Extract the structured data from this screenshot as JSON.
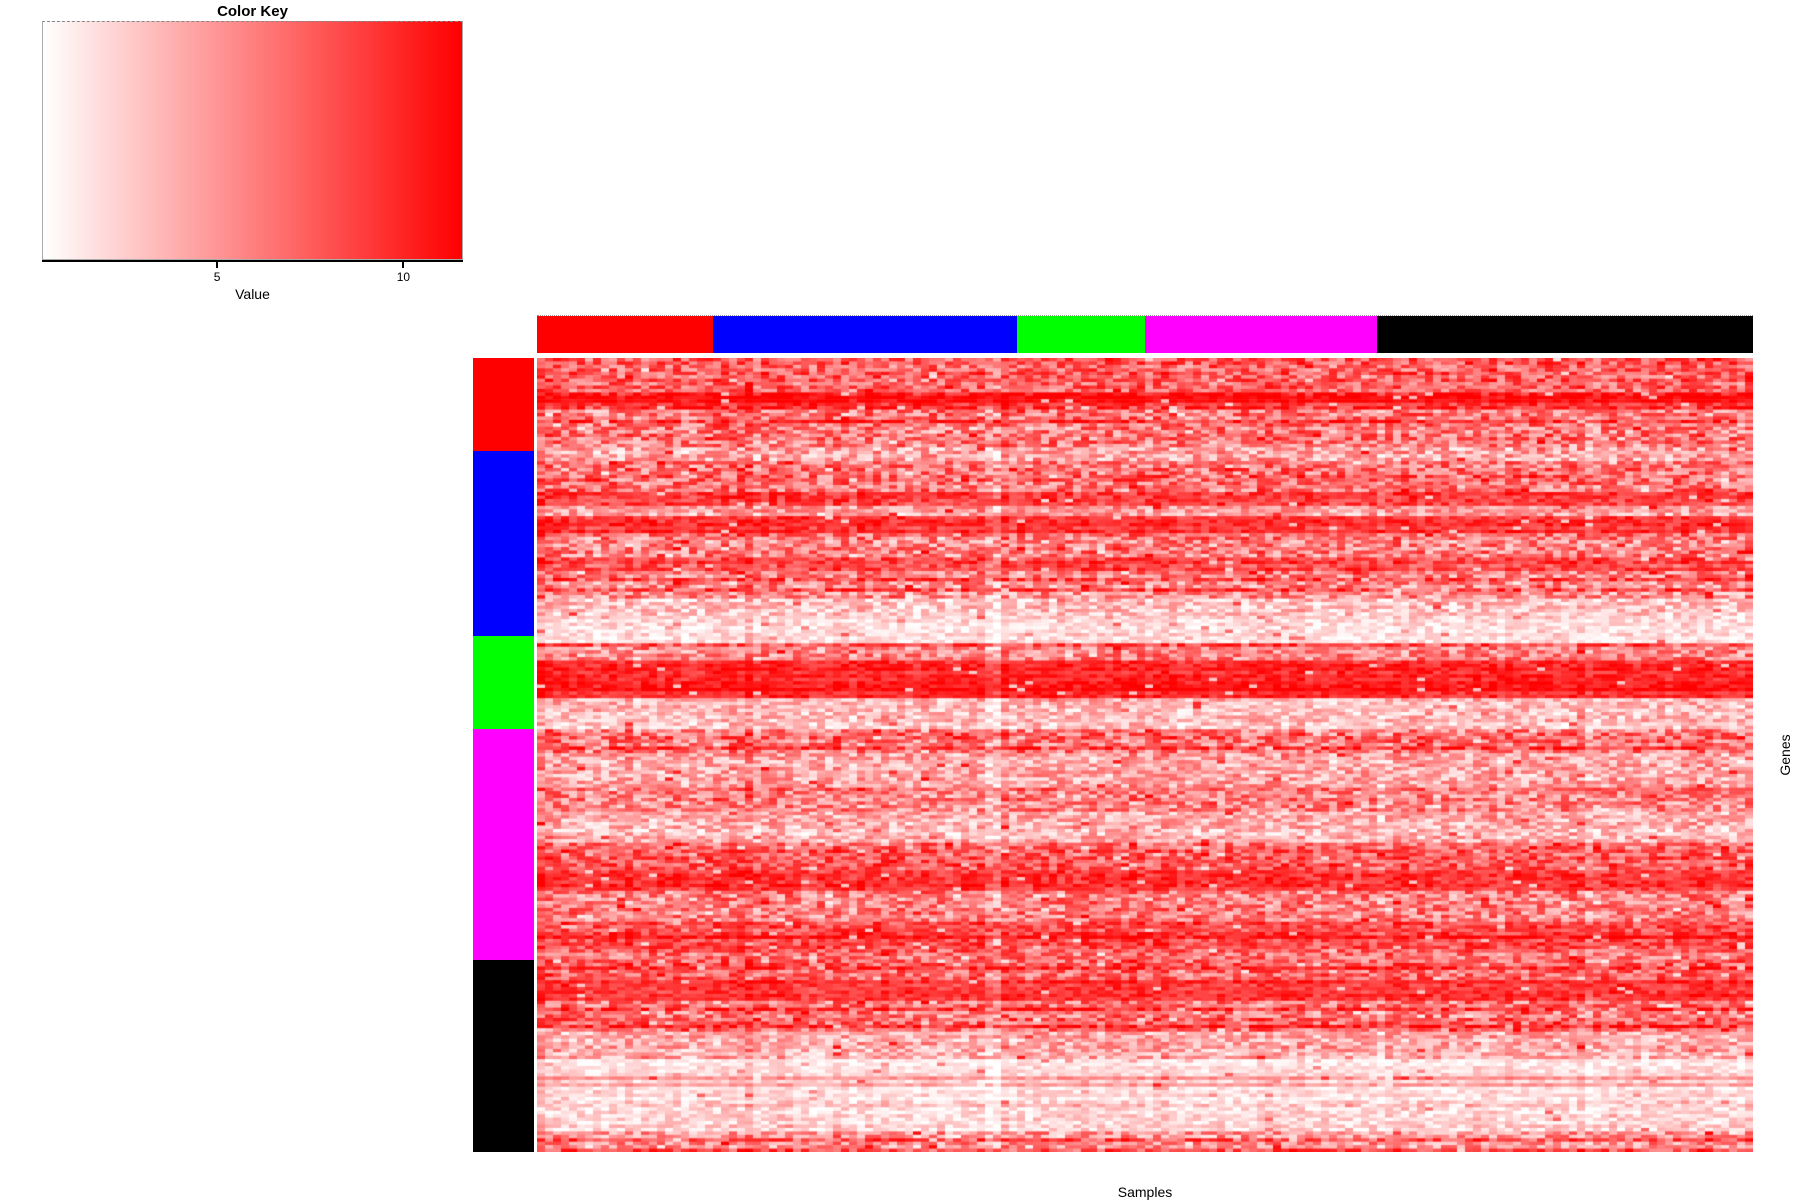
{
  "color_key": {
    "title": "Color Key",
    "axis_label": "Value",
    "ticks": [
      {
        "value": 5,
        "label": "5"
      },
      {
        "value": 10,
        "label": "10"
      }
    ],
    "axis_range": [
      0.3,
      11.6
    ],
    "gradient_low": "#FFFFFF",
    "gradient_high": "#FF0000"
  },
  "axes": {
    "x_label": "Samples",
    "y_label": "Genes"
  },
  "chart_data": {
    "type": "heatmap",
    "title": "Color Key",
    "xlabel": "Samples",
    "ylabel": "Genes",
    "legend_ticks": [
      5,
      10
    ],
    "legend_range": [
      0.3,
      11.6
    ],
    "color_scale": {
      "low": "#FFFFFF",
      "high": "#FF0000"
    },
    "grid": false,
    "n_rows": 231,
    "n_cols": 152,
    "col_groups": [
      {
        "name": "red",
        "color": "#FF0000",
        "n": 22
      },
      {
        "name": "blue",
        "color": "#0000FF",
        "n": 38
      },
      {
        "name": "green",
        "color": "#00FF00",
        "n": 16
      },
      {
        "name": "magenta",
        "color": "#FF00FF",
        "n": 29
      },
      {
        "name": "black",
        "color": "#000000",
        "n": 47
      }
    ],
    "row_groups": [
      {
        "name": "red",
        "color": "#FF0000",
        "n": 27
      },
      {
        "name": "blue",
        "color": "#0000FF",
        "n": 54
      },
      {
        "name": "green",
        "color": "#00FF00",
        "n": 27
      },
      {
        "name": "magenta",
        "color": "#FF00FF",
        "n": 67
      },
      {
        "name": "black",
        "color": "#000000",
        "n": 56
      }
    ],
    "row_bands": [
      [
        11,
        0.62,
        0.35
      ],
      [
        3,
        0.8,
        0.2
      ],
      [
        12,
        0.55,
        0.4
      ],
      [
        5,
        0.3,
        0.35
      ],
      [
        8,
        0.55,
        0.4
      ],
      [
        4,
        0.78,
        0.25
      ],
      [
        3,
        0.35,
        0.3
      ],
      [
        5,
        0.8,
        0.2
      ],
      [
        7,
        0.5,
        0.4
      ],
      [
        4,
        0.72,
        0.28
      ],
      [
        8,
        0.45,
        0.38
      ],
      [
        5,
        0.25,
        0.28
      ],
      [
        8,
        0.15,
        0.18
      ],
      [
        5,
        0.45,
        0.35
      ],
      [
        11,
        0.85,
        0.18
      ],
      [
        9,
        0.25,
        0.28
      ],
      [
        7,
        0.55,
        0.4
      ],
      [
        11,
        0.35,
        0.32
      ],
      [
        6,
        0.52,
        0.38
      ],
      [
        9,
        0.3,
        0.3
      ],
      [
        8,
        0.62,
        0.35
      ],
      [
        6,
        0.78,
        0.22
      ],
      [
        9,
        0.5,
        0.38
      ],
      [
        8,
        0.7,
        0.3
      ],
      [
        9,
        0.6,
        0.35
      ],
      [
        6,
        0.8,
        0.2
      ],
      [
        9,
        0.55,
        0.38
      ],
      [
        8,
        0.33,
        0.3
      ],
      [
        12,
        0.12,
        0.15
      ],
      [
        9,
        0.18,
        0.2
      ],
      [
        6,
        0.4,
        0.35
      ]
    ],
    "noise_seed": 42
  }
}
